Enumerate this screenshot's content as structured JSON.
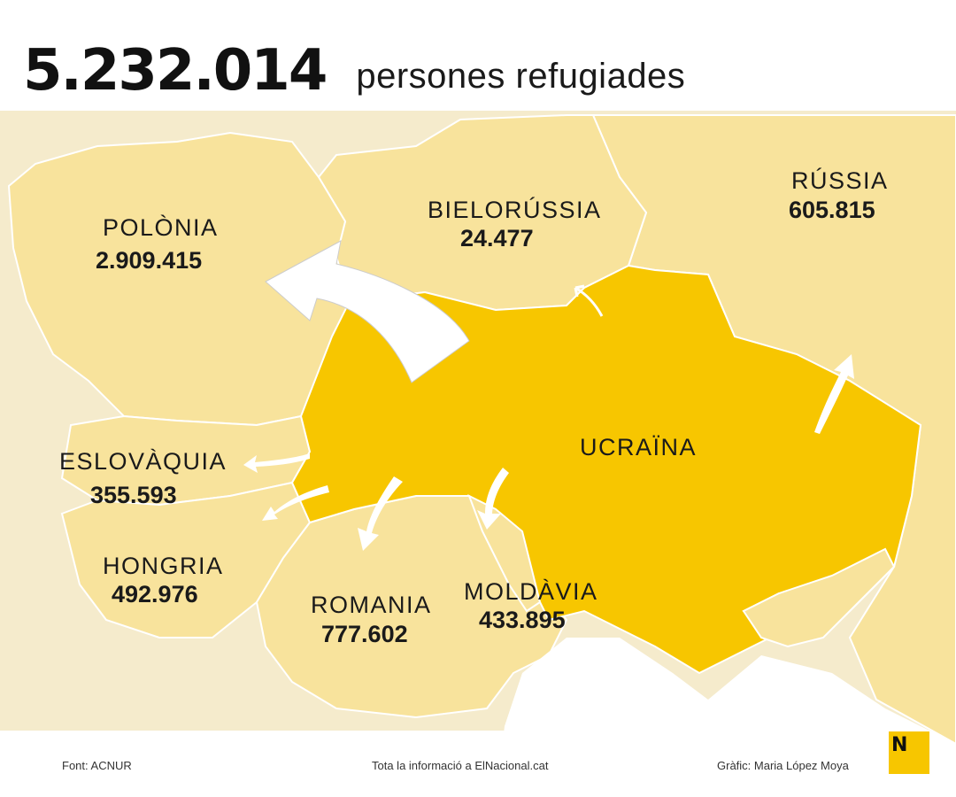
{
  "headline": {
    "total": "5.232.014",
    "label": "persones refugiades"
  },
  "countries": {
    "poland": {
      "name": "POLÒNIA",
      "refugees": "2.909.415"
    },
    "belarus": {
      "name": "BIELORÚSSIA",
      "refugees": "24.477"
    },
    "russia": {
      "name": "RÚSSIA",
      "refugees": "605.815"
    },
    "slovakia": {
      "name": "ESLOVÀQUIA",
      "refugees": "355.593"
    },
    "hungary": {
      "name": "HONGRIA",
      "refugees": "492.976"
    },
    "romania": {
      "name": "ROMANIA",
      "refugees": "777.602"
    },
    "moldova": {
      "name": "MOLDÀVIA",
      "refugees": "433.895"
    },
    "ukraine": {
      "name": "UCRAÏNA"
    }
  },
  "footer": {
    "source": "Font: ACNUR",
    "info": "Tota la informació a ElNacional.cat",
    "credit": "Gràfic: Maria López Moya"
  },
  "logo": {
    "letter": "N"
  },
  "colors": {
    "ukraine": "#f7c600",
    "neighbors": "#f8e39c",
    "outer": "#f5ebcc",
    "sea": "#ffffff",
    "arrow": "#ffffff"
  }
}
